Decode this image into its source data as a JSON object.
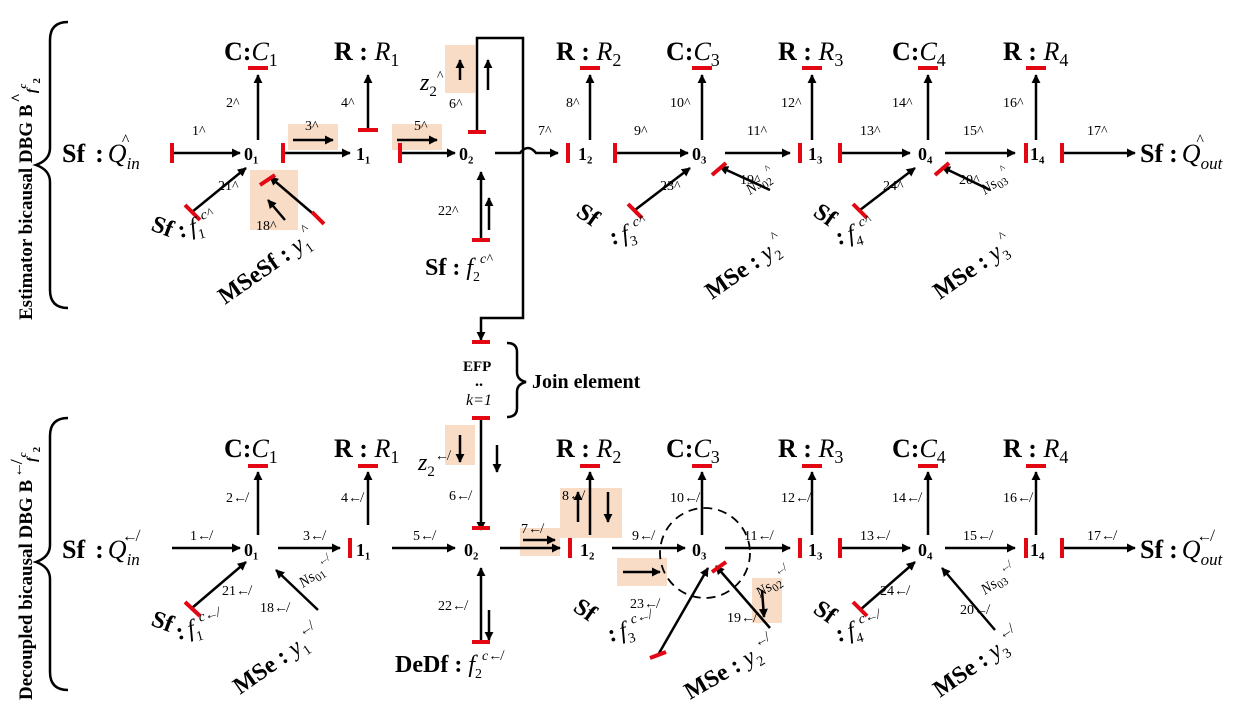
{
  "side_labels": {
    "estimator": "Estimator bicausal DBG B",
    "estimator_sup": "^",
    "estimator_sub": "f",
    "estimator_subsup": "c",
    "estimator_subsub": "2",
    "decoupled": "Decoupled bicausal DBG B",
    "decoupled_sup": "↚",
    "decoupled_sub": "f",
    "decoupled_subsup": "c",
    "decoupled_subsub": "2"
  },
  "join": {
    "efp": "EFP",
    "k": "k=1",
    "label": "Join element"
  },
  "top": {
    "sf_in": "Sf",
    "q_in": "Q",
    "q_in_sub": "in",
    "q_in_sup": "^",
    "sf_out": "Sf",
    "q_out": "Q",
    "q_out_sub": "out",
    "q_out_sup": "^",
    "c1": [
      "C",
      "C",
      "1"
    ],
    "r1": [
      "R",
      "R",
      "1"
    ],
    "r2": [
      "R",
      "R",
      "2"
    ],
    "c3": [
      "C",
      "C",
      "3"
    ],
    "r3": [
      "R",
      "R",
      "3"
    ],
    "c4": [
      "C",
      "C",
      "4"
    ],
    "r4": [
      "R",
      "R",
      "4"
    ],
    "junctions": [
      "0₁",
      "1₁",
      "0₂",
      "1₂",
      "0₃",
      "1₃",
      "0₄",
      "1₄"
    ],
    "bonds": [
      "1^",
      "2^",
      "3^",
      "4^",
      "5^",
      "6^",
      "7^",
      "8^",
      "9^",
      "10^",
      "11^",
      "12^",
      "13^",
      "14^",
      "15^",
      "16^",
      "17^",
      "18^",
      "19^",
      "20^",
      "21^",
      "22^",
      "23^",
      "24^"
    ],
    "z": "z",
    "z_sub": "2",
    "z_sup": "^",
    "sf_f1": "Sf",
    "f1": "f",
    "f1_sub": "1",
    "f1_sup": "c^",
    "msesf": "MSeSf",
    "y1": "y",
    "y1_sub": "1",
    "y1_sup": "^",
    "sf_f2": "Sf",
    "f2": "f",
    "f2_sub": "2",
    "f2_sup": "c^",
    "sf_f3": "Sf",
    "f3": "f",
    "f3_sub": "3",
    "f3_sup": "c^",
    "mse_y2": "MSe",
    "y2": "y",
    "y2_sub": "2",
    "y2_sup": "^",
    "sf_f4": "Sf",
    "f4": "f",
    "f4_sub": "4",
    "f4_sup": "c^",
    "mse_y3": "MSe",
    "y3": "y",
    "y3_sub": "3",
    "y3_sup": "^",
    "ns02": "Ns",
    "ns02_sub": "02",
    "ns02_sup": "^",
    "ns03": "Ns",
    "ns03_sub": "03",
    "ns03_sup": "^"
  },
  "bottom": {
    "sf_in": "Sf",
    "q_in": "Q",
    "q_in_sub": "in",
    "q_in_sup": "↚",
    "sf_out": "Sf",
    "q_out": "Q",
    "q_out_sub": "out",
    "q_out_sup": "↚",
    "c1": [
      "C",
      "C",
      "1"
    ],
    "r1": [
      "R",
      "R",
      "1"
    ],
    "r2": [
      "R",
      "R",
      "2"
    ],
    "c3": [
      "C",
      "C",
      "3"
    ],
    "r3": [
      "R",
      "R",
      "3"
    ],
    "c4": [
      "C",
      "C",
      "4"
    ],
    "r4": [
      "R",
      "R",
      "4"
    ],
    "junctions": [
      "0₁",
      "1₁",
      "0₂",
      "1₂",
      "0₃",
      "1₃",
      "0₄",
      "1₄"
    ],
    "bonds": [
      "1↚",
      "2↚",
      "3↚",
      "4↚",
      "5↚",
      "6↚",
      "7↚",
      "8↚",
      "9↚",
      "10↚",
      "11↚",
      "12↚",
      "13↚",
      "14↚",
      "15↚",
      "16↚",
      "17↚",
      "18↚",
      "19↚",
      "20↚",
      "21↚",
      "22↚",
      "23↚",
      "24↚"
    ],
    "z": "z",
    "z_sub": "2",
    "z_sup": "↚",
    "sf_f1": "Sf",
    "f1": "f",
    "f1_sub": "1",
    "f1_sup": "c↚",
    "mse_y1": "MSe",
    "y1": "y",
    "y1_sub": "1",
    "y1_sup": "↚",
    "dedf": "DeDf",
    "f2": "f",
    "f2_sub": "2",
    "f2_sup": "c↚",
    "sf_f3": "Sf",
    "f3": "f",
    "f3_sub": "3",
    "f3_sup": "c↚",
    "mse_y2": "MSe",
    "y2": "y",
    "y2_sub": "2",
    "y2_sup": "↚",
    "sf_f4": "Sf",
    "f4": "f",
    "f4_sub": "4",
    "f4_sup": "c↚",
    "mse_y3": "MSe",
    "y3": "y",
    "y3_sub": "3",
    "y3_sup": "↚",
    "ns01": "Ns",
    "ns01_sub": "01",
    "ns01_sup": "↚",
    "ns02": "Ns",
    "ns02_sub": "02",
    "ns02_sup": "↚",
    "ns03": "Ns",
    "ns03_sub": "03",
    "ns03_sup": "↚"
  },
  "colors": {
    "stroke": "#e30613",
    "highlight": "#f8dcc6",
    "line": "#000000"
  }
}
